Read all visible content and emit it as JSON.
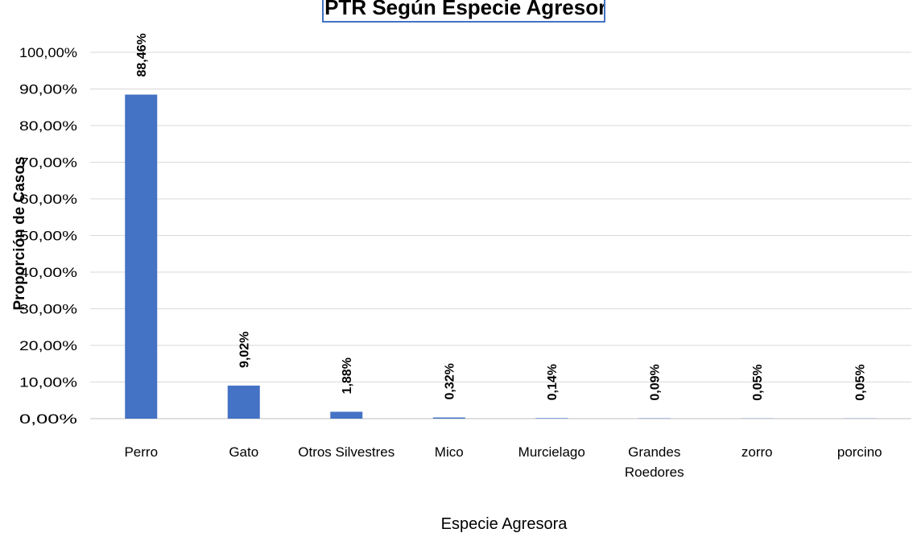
{
  "chart_data": {
    "type": "bar",
    "title": "APTR Según Especie Agresora",
    "xlabel": "Especie Agresora",
    "ylabel": "Proporción de Casos",
    "categories": [
      "Perro",
      "Gato",
      "Otros Silvestres",
      "Mico",
      "Murcielago",
      "Grandes Roedores",
      "zorro",
      "porcino"
    ],
    "values": [
      88.46,
      9.02,
      1.88,
      0.32,
      0.14,
      0.09,
      0.05,
      0.05
    ],
    "data_labels": [
      "88,46%",
      "9,02%",
      "1,88%",
      "0,32%",
      "0,14%",
      "0,09%",
      "0,05%",
      "0,05%"
    ],
    "yticks": [
      "0,00%",
      "10,00%",
      "20,00%",
      "30,00%",
      "40,00%",
      "50,00%",
      "60,00%",
      "70,00%",
      "80,00%",
      "90,00%",
      "100,00%"
    ],
    "ylim": [
      0,
      100
    ],
    "grid": true,
    "legend": "none",
    "colors": {
      "bar": "#4472c4",
      "grid": "#d9d9d9",
      "title_border": "#4472c4"
    }
  }
}
